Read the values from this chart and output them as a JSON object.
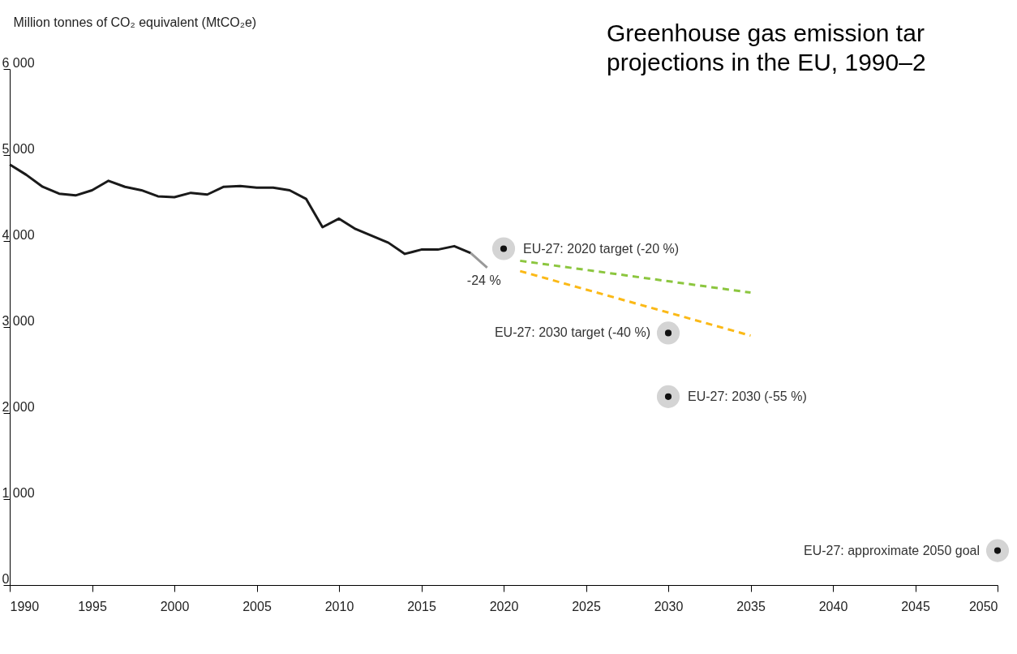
{
  "chart_data": {
    "type": "line",
    "title": [
      "Greenhouse gas emission tar",
      "projections in the EU, 1990–2"
    ],
    "ylabel": "Million tonnes of CO₂ equivalent (MtCO₂e)",
    "xlim": [
      1990,
      2050
    ],
    "xticks": [
      1990,
      1995,
      2000,
      2005,
      2010,
      2015,
      2020,
      2025,
      2030,
      2035,
      2040,
      2045,
      2050
    ],
    "ylim": [
      0,
      6000
    ],
    "yticks": [
      {
        "value": 0,
        "label": "0"
      },
      {
        "value": 1000,
        "label": "1 000"
      },
      {
        "value": 2000,
        "label": "2 000"
      },
      {
        "value": 3000,
        "label": "3 000"
      },
      {
        "value": 4000,
        "label": "4 000"
      },
      {
        "value": 5000,
        "label": "5 000"
      },
      {
        "value": 6000,
        "label": "6 000"
      }
    ],
    "grid": false,
    "series": [
      {
        "type": "line",
        "color": "#1a1a1a",
        "line_style": "solid",
        "x": [
          1990,
          1991,
          1992,
          1993,
          1994,
          1995,
          1996,
          1997,
          1998,
          1999,
          2000,
          2001,
          2002,
          2003,
          2004,
          2005,
          2006,
          2007,
          2008,
          2009,
          2010,
          2011,
          2012,
          2013,
          2014,
          2015,
          2016,
          2017,
          2018
        ],
        "values": [
          4890,
          4770,
          4630,
          4550,
          4530,
          4590,
          4700,
          4630,
          4590,
          4520,
          4510,
          4560,
          4540,
          4630,
          4640,
          4620,
          4620,
          4590,
          4490,
          4160,
          4260,
          4140,
          4060,
          3980,
          3850,
          3900,
          3900,
          3940,
          3860
        ]
      },
      {
        "type": "line",
        "color": "#999999",
        "line_style": "solid",
        "x": [
          2018,
          2019
        ],
        "values": [
          3860,
          3690
        ]
      },
      {
        "type": "line",
        "color": "#8cc63f",
        "line_style": "dashed",
        "x": [
          2021,
          2035
        ],
        "values": [
          3770,
          3400
        ]
      },
      {
        "type": "line",
        "color": "#fbb917",
        "line_style": "dashed",
        "x": [
          2021,
          2035
        ],
        "values": [
          3650,
          2900
        ]
      },
      {
        "type": "scatter",
        "color": "#111111",
        "marker": "circle",
        "x": [
          2020,
          2030,
          2030,
          2050
        ],
        "values": [
          3910,
          2930,
          2190,
          400
        ]
      }
    ],
    "annotations": [
      {
        "text": "-24 %",
        "x": 2019,
        "y": 3690
      },
      {
        "text": "EU-27: 2020 target (-20 %)",
        "x": 2020,
        "y": 3910
      },
      {
        "text": "EU-27: 2030 target (-40 %)",
        "x": 2030,
        "y": 2930
      },
      {
        "text": "EU-27: 2030 (-55 %)",
        "x": 2030,
        "y": 2190
      },
      {
        "text": "EU-27: approximate 2050 goal",
        "x": 2050,
        "y": 400
      }
    ]
  }
}
